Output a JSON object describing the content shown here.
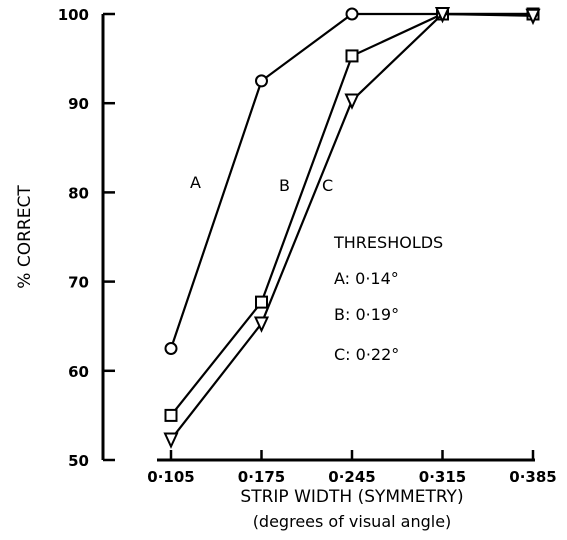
{
  "chart_data": {
    "type": "line",
    "x": [
      0.105,
      0.175,
      0.245,
      0.315,
      0.385
    ],
    "x_tick_labels": [
      "0·105",
      "0·175",
      "0·245",
      "0·315",
      "0·385"
    ],
    "y_ticks": [
      50,
      60,
      70,
      80,
      90,
      100
    ],
    "y_tick_labels": [
      "50",
      "60",
      "70",
      "80",
      "90",
      "100"
    ],
    "xlim": [
      0.105,
      0.385
    ],
    "ylim": [
      50,
      100
    ],
    "xlabel": "STRIP  WIDTH (SYMMETRY)",
    "xlabel2": "(degrees of visual angle)",
    "ylabel": "% CORRECT",
    "grid": false,
    "series": [
      {
        "name": "A",
        "marker": "circle",
        "values": [
          62.5,
          92.5,
          100,
          100,
          100
        ]
      },
      {
        "name": "B",
        "marker": "square",
        "values": [
          55,
          67.7,
          95.3,
          100,
          100
        ]
      },
      {
        "name": "C",
        "marker": "triangle",
        "values": [
          52.3,
          65.3,
          90.3,
          100,
          99.8
        ]
      }
    ],
    "annotations": {
      "title": "THRESHOLDS",
      "lines": [
        "A: 0·14°",
        "B: 0·19°",
        "C: 0·22°"
      ]
    }
  }
}
